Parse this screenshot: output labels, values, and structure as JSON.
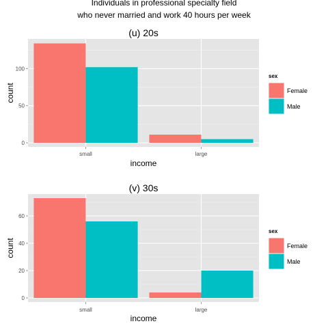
{
  "figure": {
    "title_line1": "Individuals in professional specialty field",
    "title_line2": "who never married and work 40 hours per week"
  },
  "chart_data": [
    {
      "type": "bar",
      "title": "(u) 20s",
      "xlabel": "income",
      "ylabel": "count",
      "categories": [
        "small",
        "large"
      ],
      "series": [
        {
          "name": "Female",
          "color": "#F8766D",
          "values": [
            134,
            11
          ]
        },
        {
          "name": "Male",
          "color": "#00BFC4",
          "values": [
            102,
            5
          ]
        }
      ],
      "ylim": [
        0,
        140
      ],
      "yticks": [
        0,
        50,
        100
      ],
      "legend": {
        "title": "sex",
        "position": "right"
      },
      "grid": true
    },
    {
      "type": "bar",
      "title": "(v) 30s",
      "xlabel": "income",
      "ylabel": "count",
      "categories": [
        "small",
        "large"
      ],
      "series": [
        {
          "name": "Female",
          "color": "#F8766D",
          "values": [
            73,
            4
          ]
        },
        {
          "name": "Male",
          "color": "#00BFC4",
          "values": [
            56,
            20
          ]
        }
      ],
      "ylim": [
        0,
        76
      ],
      "yticks": [
        0,
        20,
        40,
        60
      ],
      "legend": {
        "title": "sex",
        "position": "right"
      },
      "grid": true
    }
  ]
}
